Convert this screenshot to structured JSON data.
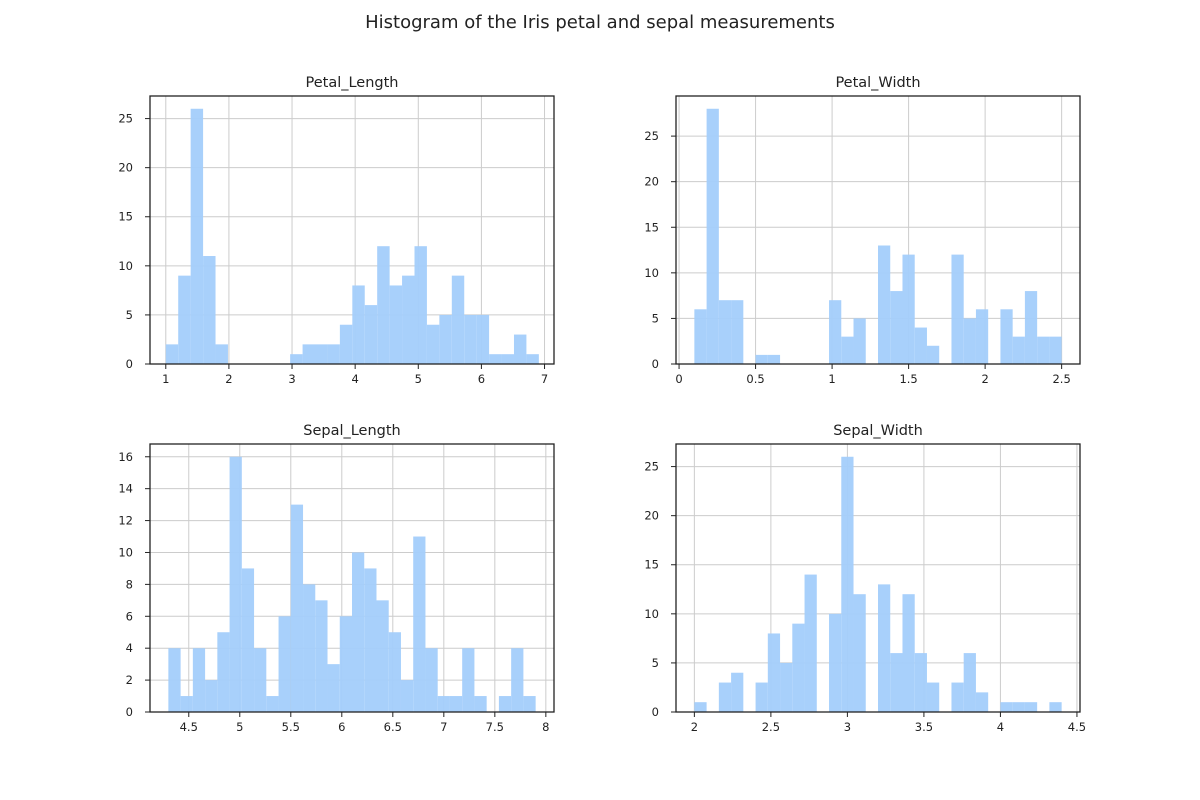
{
  "title": "Histogram of the Iris petal and sepal measurements",
  "bar_color": "#a3cdfb",
  "chart_data": [
    {
      "type": "bar",
      "title": "Petal_Length",
      "bin_start": 1.0,
      "bin_width": 0.197,
      "values": [
        2,
        9,
        26,
        11,
        2,
        0,
        0,
        0,
        0,
        0,
        1,
        2,
        2,
        2,
        4,
        8,
        6,
        12,
        8,
        9,
        12,
        4,
        5,
        9,
        5,
        5,
        1,
        1,
        3,
        1
      ],
      "xlim": [
        0.75,
        7.15
      ],
      "ylim": [
        0,
        27.3
      ],
      "xticks": [
        1,
        2,
        3,
        4,
        5,
        6,
        7
      ],
      "yticks": [
        0,
        5,
        10,
        15,
        20,
        25
      ],
      "grid": true
    },
    {
      "type": "bar",
      "title": "Petal_Width",
      "bin_start": 0.1,
      "bin_width": 0.08,
      "values": [
        6,
        28,
        7,
        7,
        0,
        1,
        1,
        0,
        0,
        0,
        0,
        7,
        3,
        5,
        0,
        13,
        8,
        12,
        4,
        2,
        0,
        12,
        5,
        6,
        0,
        6,
        3,
        8,
        3,
        3
      ],
      "xlim": [
        -0.02,
        2.62
      ],
      "ylim": [
        0,
        29.4
      ],
      "xticks": [
        0.0,
        0.5,
        1.0,
        1.5,
        2.0,
        2.5
      ],
      "yticks": [
        0,
        5,
        10,
        15,
        20,
        25
      ],
      "grid": true
    },
    {
      "type": "bar",
      "title": "Sepal_Length",
      "bin_start": 4.3,
      "bin_width": 0.12,
      "values": [
        4,
        1,
        4,
        2,
        5,
        16,
        9,
        4,
        1,
        6,
        13,
        8,
        7,
        3,
        6,
        10,
        9,
        7,
        5,
        2,
        11,
        4,
        1,
        1,
        4,
        1,
        0,
        1,
        4,
        1
      ],
      "xlim": [
        4.12,
        8.08
      ],
      "ylim": [
        0,
        16.8
      ],
      "xticks": [
        4.5,
        5.0,
        5.5,
        6.0,
        6.5,
        7.0,
        7.5,
        8.0
      ],
      "yticks": [
        0,
        2,
        4,
        6,
        8,
        10,
        12,
        14,
        16
      ],
      "grid": true
    },
    {
      "type": "bar",
      "title": "Sepal_Width",
      "bin_start": 2.0,
      "bin_width": 0.08,
      "values": [
        1,
        0,
        3,
        4,
        0,
        3,
        8,
        5,
        9,
        14,
        0,
        10,
        26,
        12,
        0,
        13,
        6,
        12,
        6,
        3,
        0,
        3,
        6,
        2,
        0,
        1,
        1,
        1,
        0,
        1
      ],
      "xlim": [
        1.88,
        4.52
      ],
      "ylim": [
        0,
        27.3
      ],
      "xticks": [
        2.0,
        2.5,
        3.0,
        3.5,
        4.0,
        4.5
      ],
      "yticks": [
        0,
        5,
        10,
        15,
        20,
        25
      ],
      "grid": true
    }
  ]
}
